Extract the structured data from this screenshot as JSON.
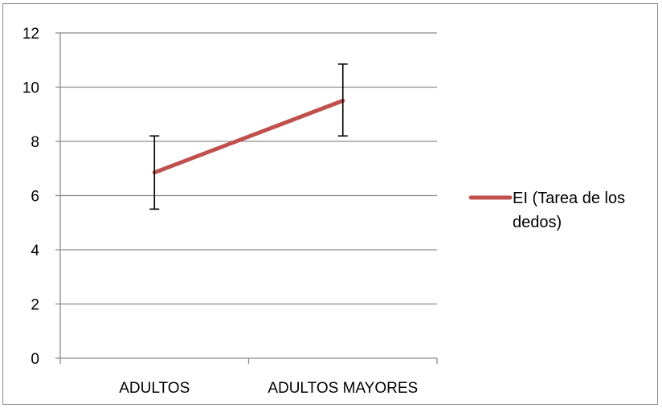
{
  "chart_data": {
    "type": "line",
    "categories": [
      "ADULTOS",
      "ADULTOS MAYORES"
    ],
    "series": [
      {
        "name": "EI (Tarea de los dedos)",
        "values": [
          6.85,
          9.5
        ],
        "error_low": [
          5.5,
          8.2
        ],
        "error_high": [
          8.2,
          10.85
        ],
        "color": "#c0504d"
      }
    ],
    "ylim": [
      0,
      12
    ],
    "yticks": [
      0,
      2,
      4,
      6,
      8,
      10,
      12
    ],
    "grid": true,
    "legend": "right",
    "legend_lines": [
      "EI (Tarea de los",
      "dedos)"
    ]
  }
}
